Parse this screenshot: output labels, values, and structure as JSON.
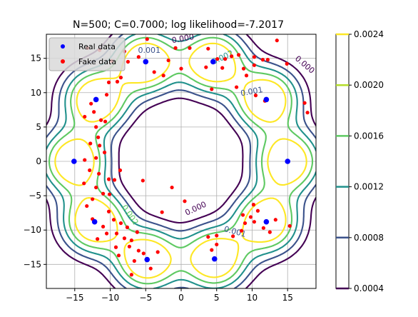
{
  "chart_data": {
    "type": "scatter",
    "title": "N=500; C=0.7000; log likelihood=-7.2017",
    "xlabel": "",
    "ylabel": "",
    "xlim": [
      -19,
      19
    ],
    "ylim": [
      -18.5,
      18.5
    ],
    "x_ticks": [
      -15,
      -10,
      -5,
      0,
      5,
      10,
      15
    ],
    "x_tick_labels": [
      "−15",
      "−10",
      "−5",
      "0",
      "5",
      "10",
      "15"
    ],
    "y_ticks": [
      -15,
      -10,
      -5,
      0,
      5,
      10,
      15
    ],
    "y_tick_labels": [
      "−15",
      "−10",
      "−5",
      "0",
      "5",
      "10",
      "15"
    ],
    "grid": true,
    "legend": {
      "placement": "top-left",
      "entries": [
        {
          "label": "Real data",
          "color": "#0000ff"
        },
        {
          "label": "Fake data",
          "color": "#ff0000"
        }
      ]
    },
    "series": [
      {
        "name": "Real data",
        "color": "#0000ff",
        "points": [
          [
            -12,
            9
          ],
          [
            -5,
            14.5
          ],
          [
            4.5,
            14.5
          ],
          [
            12,
            9
          ],
          [
            15,
            0
          ],
          [
            12,
            -8.8
          ],
          [
            4.7,
            -14.2
          ],
          [
            -4.8,
            -14.3
          ],
          [
            -12.2,
            -8.8
          ],
          [
            -15.1,
            0
          ]
        ]
      },
      {
        "name": "Fake data",
        "color": "#ff0000",
        "points": [
          [
            -13.2,
            16.5
          ],
          [
            -11.5,
            16.2
          ],
          [
            -8,
            16
          ],
          [
            -7.5,
            14.5
          ],
          [
            -6,
            15.2
          ],
          [
            -3.8,
            13
          ],
          [
            -2.5,
            12.5
          ],
          [
            -1.8,
            14.7
          ],
          [
            -0.8,
            16.5
          ],
          [
            0,
            13.5
          ],
          [
            -4.8,
            17.8
          ],
          [
            1.2,
            16.5
          ],
          [
            -9.8,
            14.6
          ],
          [
            -8.5,
            12.2
          ],
          [
            -10.2,
            11.5
          ],
          [
            -9,
            11.6
          ],
          [
            -10.5,
            9.7
          ],
          [
            -12.7,
            8.4
          ],
          [
            -13.6,
            6.5
          ],
          [
            -12.3,
            7.2
          ],
          [
            -11.3,
            6
          ],
          [
            -12,
            5
          ],
          [
            -10.7,
            5.8
          ],
          [
            -11.7,
            3.5
          ],
          [
            -12.8,
            2.6
          ],
          [
            -11.5,
            2.3
          ],
          [
            -13.6,
            0.2
          ],
          [
            -12,
            0.5
          ],
          [
            -10.8,
            1.3
          ],
          [
            -12.9,
            -1.3
          ],
          [
            -11.6,
            -1.8
          ],
          [
            -13.7,
            -3.2
          ],
          [
            -12,
            -3.8
          ],
          [
            -11,
            -4.7
          ],
          [
            -10.1,
            -4.8
          ],
          [
            -12.5,
            -5.5
          ],
          [
            -13.3,
            -6.5
          ],
          [
            -12.5,
            -8.4
          ],
          [
            -11,
            -9.5
          ],
          [
            -10.2,
            -7.3
          ],
          [
            -9.5,
            -8.5
          ],
          [
            -10.5,
            -10.5
          ],
          [
            -9.1,
            -10.5
          ],
          [
            -8.5,
            -9
          ],
          [
            -7.6,
            -9.6
          ],
          [
            -8,
            -11.2
          ],
          [
            -7,
            -11.5
          ],
          [
            -6.2,
            -10.3
          ],
          [
            -6,
            -13
          ],
          [
            -7.3,
            -12.4
          ],
          [
            -9.2,
            -12.5
          ],
          [
            -8.8,
            -13.7
          ],
          [
            -6.6,
            -14.5
          ],
          [
            -5.3,
            -13.4
          ],
          [
            -3.3,
            -13.2
          ],
          [
            -7,
            -16.5
          ],
          [
            -4.3,
            -15.6
          ],
          [
            -10.2,
            -2.6
          ],
          [
            -9.4,
            -2.7
          ],
          [
            -8.6,
            -1.3
          ],
          [
            -5.4,
            -2.8
          ],
          [
            -1.3,
            -3.8
          ],
          [
            0.5,
            -5.8
          ],
          [
            -2.7,
            -7.4
          ],
          [
            -11.8,
            -11.3
          ],
          [
            3.8,
            16.4
          ],
          [
            3.5,
            13.7
          ],
          [
            5.1,
            14.9
          ],
          [
            6.2,
            14.9
          ],
          [
            5.8,
            13.6
          ],
          [
            7.1,
            15.3
          ],
          [
            8.1,
            15.5
          ],
          [
            8.8,
            13.5
          ],
          [
            9.2,
            12.5
          ],
          [
            10.3,
            14
          ],
          [
            10.3,
            15.2
          ],
          [
            11.5,
            14.8
          ],
          [
            12.2,
            14.8
          ],
          [
            13.5,
            17.6
          ],
          [
            14.9,
            14.2
          ],
          [
            7.8,
            10.8
          ],
          [
            10.5,
            9.6
          ],
          [
            11.8,
            8.8
          ],
          [
            17.8,
            7.1
          ],
          [
            17.4,
            8.5
          ],
          [
            4.3,
            10.5
          ],
          [
            5,
            -10.8
          ],
          [
            3.8,
            -11
          ],
          [
            4.3,
            -12.9
          ],
          [
            5,
            -12.1
          ],
          [
            8.5,
            -10.1
          ],
          [
            9,
            -9
          ],
          [
            9.8,
            -8.1
          ],
          [
            10.3,
            -8.8
          ],
          [
            10.8,
            -7.2
          ],
          [
            10.2,
            -6.3
          ],
          [
            11.6,
            -9.7
          ],
          [
            12.5,
            -10.3
          ],
          [
            13.3,
            -8.5
          ],
          [
            15.3,
            -9.4
          ],
          [
            8.7,
            -7.8
          ],
          [
            7.3,
            -10.9
          ]
        ]
      }
    ],
    "contour_levels": [
      "0.001",
      "0.002",
      "0.000"
    ],
    "colorbar": {
      "range": [
        0.0004,
        0.0024
      ],
      "ticks": [
        0.0004,
        0.0008,
        0.0012,
        0.0016,
        0.002,
        0.0024
      ],
      "tick_labels": [
        "0.0004",
        "0.0008",
        "0.0012",
        "0.0016",
        "0.0020",
        "0.0024"
      ],
      "colors": [
        "#440154",
        "#3b528b",
        "#21918c",
        "#5ec962",
        "#fde725"
      ]
    }
  }
}
